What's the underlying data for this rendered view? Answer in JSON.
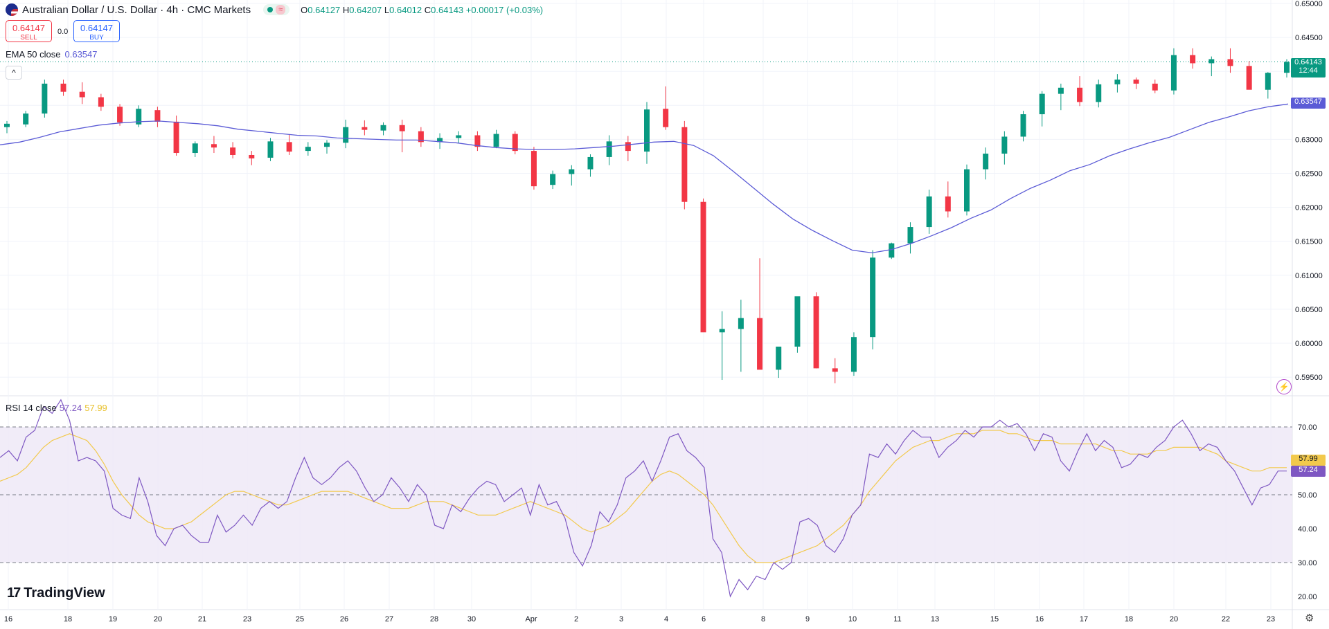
{
  "header": {
    "symbol_title": "Australian Dollar / U.S. Dollar · 4h · CMC Markets",
    "wave_badge": "≈",
    "ohlc": {
      "o_label": "O",
      "o_value": "0.64127",
      "h_label": "H",
      "h_value": "0.64207",
      "l_label": "L",
      "l_value": "0.64012",
      "c_label": "C",
      "c_value": "0.64143",
      "change": "+0.00017 (+0.03%)"
    }
  },
  "trade": {
    "sell_price": "0.64147",
    "sell_label": "SELL",
    "spread": "0.0",
    "buy_price": "0.64147",
    "buy_label": "BUY"
  },
  "ema_legend": {
    "label": "EMA 50 close",
    "value": "0.63547"
  },
  "collapse_button": {
    "label": "^"
  },
  "rsi_legend": {
    "label": "RSI 14 close",
    "value1": "57.24",
    "value2": "57.99"
  },
  "logo": {
    "text": "TradingView",
    "mark": "17"
  },
  "price_tags": {
    "last_price": "0.64143",
    "countdown": "12:44",
    "ema_tag": "0.63547",
    "rsi_ma_tag": "57.99",
    "rsi_tag": "57.24"
  },
  "colors": {
    "up": "#089981",
    "down": "#f23645",
    "ema": "#5b5bd6",
    "rsi": "#7e57c2",
    "rsi_ma": "#f2c94c",
    "rsi_band": "#ede7f6"
  },
  "icons": [
    "flag-icon",
    "bolt-icon",
    "settings-icon",
    "chevron-up-icon"
  ],
  "chart_data": [
    {
      "type": "candlestick",
      "title": "Australian Dollar / U.S. Dollar · 4h · CMC Markets",
      "ylim": [
        0.5925,
        0.65
      ],
      "y_ticks": [
        "0.65000",
        "0.64500",
        "0.64000",
        "0.63500",
        "0.63000",
        "0.62500",
        "0.62000",
        "0.61500",
        "0.61000",
        "0.60500",
        "0.60000",
        "0.59500"
      ],
      "x_ticks": [
        "16",
        "18",
        "19",
        "20",
        "21",
        "23",
        "25",
        "26",
        "27",
        "28",
        "30",
        "Apr",
        "2",
        "3",
        "4",
        "6",
        "8",
        "9",
        "10",
        "11",
        "13",
        "15",
        "16",
        "17",
        "18",
        "20",
        "22",
        "23"
      ],
      "grid": true,
      "series": [
        {
          "name": "EMA 50 close",
          "values": [
            0.6292,
            0.6296,
            0.6303,
            0.6311,
            0.6316,
            0.6321,
            0.6324,
            0.6326,
            0.6327,
            0.6325,
            0.6323,
            0.632,
            0.6315,
            0.6312,
            0.6309,
            0.6306,
            0.6305,
            0.6302,
            0.6301,
            0.63,
            0.6299,
            0.6299,
            0.6297,
            0.6295,
            0.6291,
            0.6288,
            0.6286,
            0.6285,
            0.6285,
            0.6286,
            0.6288,
            0.629,
            0.6293,
            0.6296,
            0.6297,
            0.6291,
            0.6276,
            0.6253,
            0.6229,
            0.6205,
            0.6183,
            0.6166,
            0.6151,
            0.6137,
            0.6133,
            0.6138,
            0.6147,
            0.6158,
            0.617,
            0.6184,
            0.6196,
            0.6213,
            0.6228,
            0.624,
            0.6254,
            0.6263,
            0.6276,
            0.6286,
            0.6295,
            0.6303,
            0.6314,
            0.6325,
            0.6333,
            0.6342,
            0.6348,
            0.6352
          ]
        },
        {
          "name": "Last price",
          "values": [
            0.64143
          ]
        }
      ],
      "candles_ohlc_approx": [
        [
          0.6318,
          0.6327,
          0.6309,
          0.6323
        ],
        [
          0.6322,
          0.6342,
          0.6318,
          0.6338
        ],
        [
          0.6338,
          0.6388,
          0.6332,
          0.6382
        ],
        [
          0.6382,
          0.6388,
          0.6364,
          0.637
        ],
        [
          0.637,
          0.6384,
          0.6352,
          0.6362
        ],
        [
          0.6362,
          0.6367,
          0.6342,
          0.6348
        ],
        [
          0.6348,
          0.6352,
          0.632,
          0.6325
        ],
        [
          0.6322,
          0.635,
          0.6318,
          0.6345
        ],
        [
          0.6343,
          0.6348,
          0.6318,
          0.6326
        ],
        [
          0.6326,
          0.6335,
          0.6276,
          0.628
        ],
        [
          0.628,
          0.6297,
          0.6274,
          0.6294
        ],
        [
          0.6293,
          0.6305,
          0.628,
          0.6288
        ],
        [
          0.6288,
          0.6296,
          0.6272,
          0.6277
        ],
        [
          0.6277,
          0.6283,
          0.6262,
          0.6272
        ],
        [
          0.6273,
          0.6302,
          0.6268,
          0.6297
        ],
        [
          0.6296,
          0.6307,
          0.6277,
          0.6282
        ],
        [
          0.6283,
          0.6296,
          0.6276,
          0.6289
        ],
        [
          0.6289,
          0.6299,
          0.6279,
          0.6295
        ],
        [
          0.6295,
          0.6329,
          0.6287,
          0.6318
        ],
        [
          0.6318,
          0.6328,
          0.6306,
          0.6314
        ],
        [
          0.6313,
          0.6325,
          0.6306,
          0.6321
        ],
        [
          0.6321,
          0.6329,
          0.6281,
          0.6312
        ],
        [
          0.6312,
          0.6318,
          0.6289,
          0.6296
        ],
        [
          0.6296,
          0.6309,
          0.6286,
          0.6302
        ],
        [
          0.6302,
          0.6312,
          0.6294,
          0.6306
        ],
        [
          0.6306,
          0.6312,
          0.6283,
          0.6289
        ],
        [
          0.6289,
          0.6314,
          0.6287,
          0.6308
        ],
        [
          0.6308,
          0.6312,
          0.6278,
          0.6283
        ],
        [
          0.6283,
          0.6289,
          0.6226,
          0.6231
        ],
        [
          0.6233,
          0.6254,
          0.6227,
          0.6249
        ],
        [
          0.6249,
          0.6262,
          0.6232,
          0.6256
        ],
        [
          0.6256,
          0.6278,
          0.6245,
          0.6274
        ],
        [
          0.6274,
          0.6306,
          0.6262,
          0.6297
        ],
        [
          0.6296,
          0.6305,
          0.6268,
          0.6283
        ],
        [
          0.6282,
          0.6355,
          0.6264,
          0.6344
        ],
        [
          0.6345,
          0.6378,
          0.6314,
          0.6318
        ],
        [
          0.6318,
          0.6327,
          0.6197,
          0.6208
        ],
        [
          0.6208,
          0.6213,
          0.6048,
          0.6016
        ],
        [
          0.6016,
          0.6047,
          0.5946,
          0.6021
        ],
        [
          0.6021,
          0.6064,
          0.5958,
          0.6037
        ],
        [
          0.6037,
          0.6125,
          0.5966,
          0.5961
        ],
        [
          0.5961,
          0.5992,
          0.5949,
          0.5995
        ],
        [
          0.5995,
          0.6025,
          0.5986,
          0.6069
        ],
        [
          0.6069,
          0.6075,
          0.5963,
          0.5963
        ],
        [
          0.5963,
          0.5978,
          0.5941,
          0.5958
        ],
        [
          0.5958,
          0.6016,
          0.5952,
          0.6009
        ],
        [
          0.6009,
          0.6137,
          0.5991,
          0.6126
        ],
        [
          0.6126,
          0.6148,
          0.6124,
          0.6147
        ],
        [
          0.6147,
          0.6178,
          0.6132,
          0.6171
        ],
        [
          0.6171,
          0.6226,
          0.6161,
          0.6216
        ],
        [
          0.6216,
          0.6238,
          0.6185,
          0.6194
        ],
        [
          0.6194,
          0.6263,
          0.6188,
          0.6256
        ],
        [
          0.6256,
          0.6288,
          0.6241,
          0.6279
        ],
        [
          0.6279,
          0.6312,
          0.6263,
          0.6304
        ],
        [
          0.6304,
          0.6342,
          0.6297,
          0.6337
        ],
        [
          0.6337,
          0.6371,
          0.6319,
          0.6367
        ],
        [
          0.6367,
          0.6382,
          0.6343,
          0.6376
        ],
        [
          0.6376,
          0.6393,
          0.6349,
          0.6355
        ],
        [
          0.6355,
          0.6388,
          0.6347,
          0.6381
        ],
        [
          0.6381,
          0.6396,
          0.6369,
          0.6388
        ],
        [
          0.6388,
          0.6391,
          0.6374,
          0.6382
        ],
        [
          0.6382,
          0.6388,
          0.6368,
          0.6372
        ],
        [
          0.6372,
          0.6434,
          0.6366,
          0.6424
        ],
        [
          0.6424,
          0.6434,
          0.6404,
          0.6412
        ],
        [
          0.6412,
          0.6422,
          0.6393,
          0.6418
        ],
        [
          0.6418,
          0.6434,
          0.6398,
          0.6408
        ],
        [
          0.6408,
          0.6415,
          0.6386,
          0.6373
        ],
        [
          0.6373,
          0.6399,
          0.636,
          0.6398
        ],
        [
          0.6398,
          0.6418,
          0.6391,
          0.6414
        ]
      ]
    },
    {
      "type": "line",
      "title": "RSI 14 close",
      "ylim": [
        17,
        75
      ],
      "y_ticks": [
        "70.00",
        "60.00",
        "50.00",
        "40.00",
        "30.00",
        "20.00"
      ],
      "bands": [
        30,
        70
      ],
      "midline": 50,
      "series": [
        {
          "name": "RSI 14 close",
          "values": [
            61,
            63,
            60,
            67,
            69,
            76,
            74,
            78,
            72,
            60,
            61,
            60,
            57,
            46,
            44,
            43,
            55,
            48,
            38,
            35,
            40,
            41,
            38,
            36,
            36,
            44,
            39,
            41,
            44,
            41,
            46,
            48,
            46,
            48,
            55,
            61,
            55,
            53,
            55,
            58,
            60,
            57,
            52,
            48,
            50,
            55,
            52,
            48,
            53,
            50,
            41,
            40,
            47,
            45,
            49,
            52,
            54,
            53,
            48,
            50,
            52,
            44,
            53,
            47,
            48,
            43,
            33,
            29,
            35,
            45,
            42,
            47,
            55,
            57,
            60,
            54,
            60,
            67,
            68,
            63,
            61,
            58,
            37,
            33,
            20,
            25,
            22,
            26,
            25,
            30,
            28,
            30,
            42,
            43,
            41,
            35,
            33,
            37,
            44,
            47,
            62,
            61,
            65,
            62,
            66,
            69,
            67,
            67,
            61,
            64,
            66,
            69,
            67,
            70,
            70,
            72,
            70,
            71,
            68,
            63,
            68,
            67,
            60,
            57,
            63,
            68,
            63,
            66,
            64,
            58,
            59,
            62,
            61,
            64,
            66,
            70,
            72,
            68,
            63,
            65,
            64,
            60,
            57,
            52,
            47,
            52,
            53,
            57,
            57
          ]
        },
        {
          "name": "RSI MA",
          "values": [
            54,
            55,
            56,
            58,
            61,
            64,
            66,
            67,
            68,
            67,
            66,
            63,
            59,
            54,
            50,
            47,
            44,
            42,
            41,
            40,
            40,
            41,
            42,
            44,
            46,
            48,
            50,
            51,
            51,
            50,
            49,
            48,
            47,
            47,
            48,
            49,
            50,
            51,
            51,
            51,
            51,
            50,
            49,
            48,
            47,
            46,
            46,
            46,
            47,
            48,
            48,
            48,
            47,
            46,
            45,
            44,
            44,
            44,
            45,
            46,
            47,
            48,
            47,
            46,
            45,
            44,
            42,
            40,
            39,
            40,
            41,
            43,
            45,
            48,
            51,
            54,
            56,
            57,
            56,
            54,
            52,
            50,
            47,
            43,
            39,
            35,
            32,
            30,
            30,
            30,
            31,
            32,
            33,
            34,
            35,
            37,
            39,
            41,
            44,
            47,
            51,
            54,
            57,
            60,
            62,
            64,
            65,
            66,
            66,
            67,
            68,
            68,
            68,
            69,
            69,
            69,
            68,
            68,
            67,
            66,
            66,
            66,
            65,
            65,
            65,
            65,
            65,
            64,
            63,
            63,
            62,
            62,
            62,
            63,
            63,
            64,
            64,
            64,
            64,
            63,
            62,
            60,
            59,
            58,
            57,
            57,
            58,
            58,
            58
          ]
        }
      ]
    }
  ]
}
